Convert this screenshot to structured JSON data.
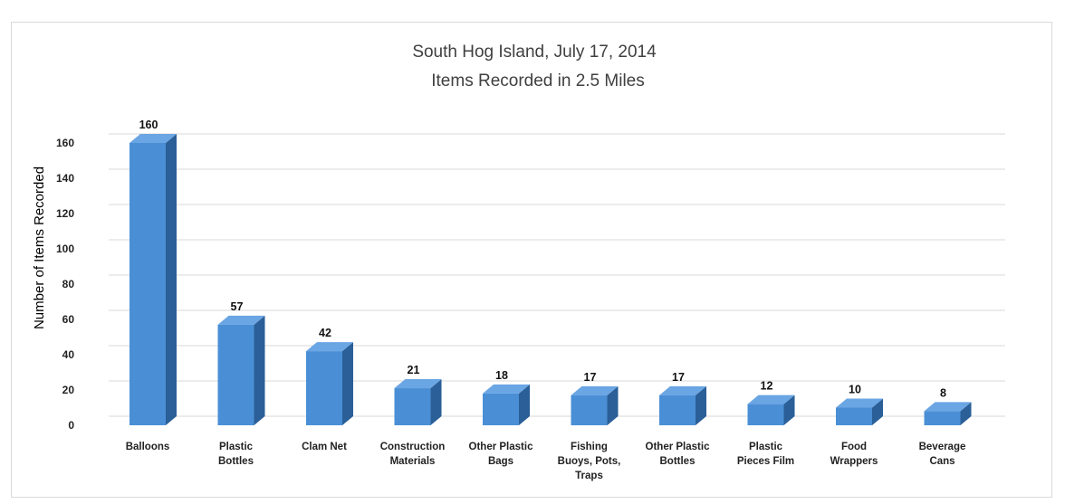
{
  "chart_data": {
    "type": "bar",
    "title": "South Hog Island, July 17, 2014",
    "subtitle": "Items Recorded in 2.5 Miles",
    "xlabel": "",
    "ylabel": "Number of Items Recorded",
    "ylim": [
      0,
      160
    ],
    "yticks": [
      "0",
      "20",
      "40",
      "60",
      "80",
      "100",
      "120",
      "140",
      "160"
    ],
    "grid": true,
    "categories": [
      [
        "Balloons"
      ],
      [
        "Plastic",
        "Bottles"
      ],
      [
        "Clam Net"
      ],
      [
        "Construction",
        "Materials"
      ],
      [
        "Other Plastic",
        "Bags"
      ],
      [
        "Fishing",
        "Buoys, Pots,",
        "Traps"
      ],
      [
        "Other Plastic",
        "Bottles"
      ],
      [
        "Plastic",
        "Pieces Film"
      ],
      [
        "Food",
        "Wrappers"
      ],
      [
        "Beverage",
        "Cans"
      ]
    ],
    "values": [
      160,
      57,
      42,
      21,
      18,
      17,
      17,
      12,
      10,
      8
    ],
    "data_labels": [
      "160",
      "57",
      "42",
      "21",
      "18",
      "17",
      "17",
      "12",
      "10",
      "8"
    ],
    "colors": {
      "bar_front": "#4a8fd6",
      "bar_side": "#2a5f97",
      "bar_top": "#6aa5e4",
      "grid": "#d9d9d9"
    }
  }
}
